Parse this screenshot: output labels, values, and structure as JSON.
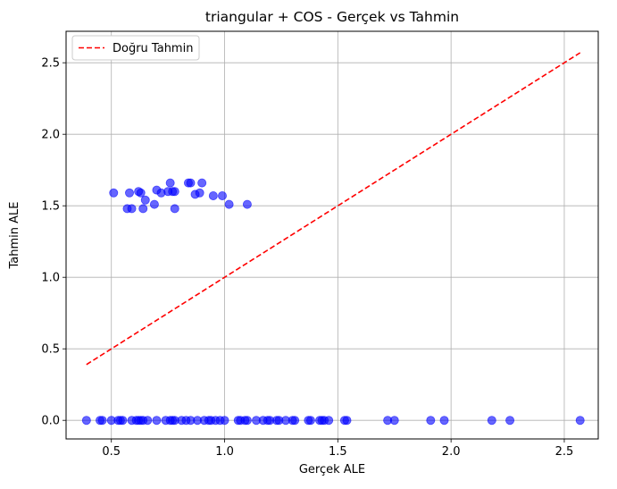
{
  "chart_data": {
    "type": "scatter",
    "title": "triangular + COS - Gerçek vs Tahmin",
    "xlabel": "Gerçek ALE",
    "ylabel": "Tahmin ALE",
    "xlim": [
      0.3,
      2.65
    ],
    "ylim": [
      -0.13,
      2.72
    ],
    "xticks": [
      0.5,
      1.0,
      1.5,
      2.0,
      2.5
    ],
    "xtick_labels": [
      "0.5",
      "1.0",
      "1.5",
      "2.0",
      "2.5"
    ],
    "yticks": [
      0.0,
      0.5,
      1.0,
      1.5,
      2.0,
      2.5
    ],
    "ytick_labels": [
      "0.0",
      "0.5",
      "1.0",
      "1.5",
      "2.0",
      "2.5"
    ],
    "grid": true,
    "legend_position": "upper-left",
    "series": [
      {
        "kind": "line",
        "name": "Doğru Tahmin",
        "style": "dashed",
        "color": "#ff0000",
        "x": [
          0.39,
          2.57
        ],
        "y": [
          0.39,
          2.57
        ]
      },
      {
        "kind": "scatter",
        "color": "#0000ff",
        "alpha": 0.6,
        "x": [
          0.51,
          0.58,
          0.62,
          0.63,
          0.57,
          0.59,
          0.64,
          0.65,
          0.69,
          0.7,
          0.72,
          0.75,
          0.76,
          0.77,
          0.78,
          0.78,
          0.84,
          0.85,
          0.87,
          0.89,
          0.9,
          0.95,
          0.99,
          1.02,
          1.1,
          0.39,
          0.45,
          0.46,
          0.5,
          0.53,
          0.54,
          0.55,
          0.59,
          0.61,
          0.62,
          0.63,
          0.64,
          0.66,
          0.7,
          0.74,
          0.76,
          0.77,
          0.78,
          0.81,
          0.83,
          0.85,
          0.88,
          0.91,
          0.93,
          0.94,
          0.96,
          0.98,
          1.0,
          1.06,
          1.07,
          1.09,
          1.1,
          1.14,
          1.17,
          1.19,
          1.2,
          1.23,
          1.24,
          1.27,
          1.3,
          1.31,
          1.37,
          1.38,
          1.42,
          1.43,
          1.44,
          1.46,
          1.53,
          1.54,
          1.72,
          1.75,
          1.91,
          1.97,
          2.18,
          2.26,
          2.57
        ],
        "y": [
          1.59,
          1.59,
          1.6,
          1.59,
          1.48,
          1.48,
          1.48,
          1.54,
          1.51,
          1.61,
          1.59,
          1.6,
          1.66,
          1.6,
          1.6,
          1.48,
          1.66,
          1.66,
          1.58,
          1.59,
          1.66,
          1.57,
          1.57,
          1.51,
          1.51,
          0,
          0,
          0,
          0,
          0,
          0,
          0,
          0,
          0,
          0,
          0,
          0,
          0,
          0,
          0,
          0,
          0,
          0,
          0,
          0,
          0,
          0,
          0,
          0,
          0,
          0,
          0,
          0,
          0,
          0,
          0,
          0,
          0,
          0,
          0,
          0,
          0,
          0,
          0,
          0,
          0,
          0,
          0,
          0,
          0,
          0,
          0,
          0,
          0,
          0,
          0,
          0,
          0,
          0,
          0,
          0
        ]
      }
    ]
  }
}
